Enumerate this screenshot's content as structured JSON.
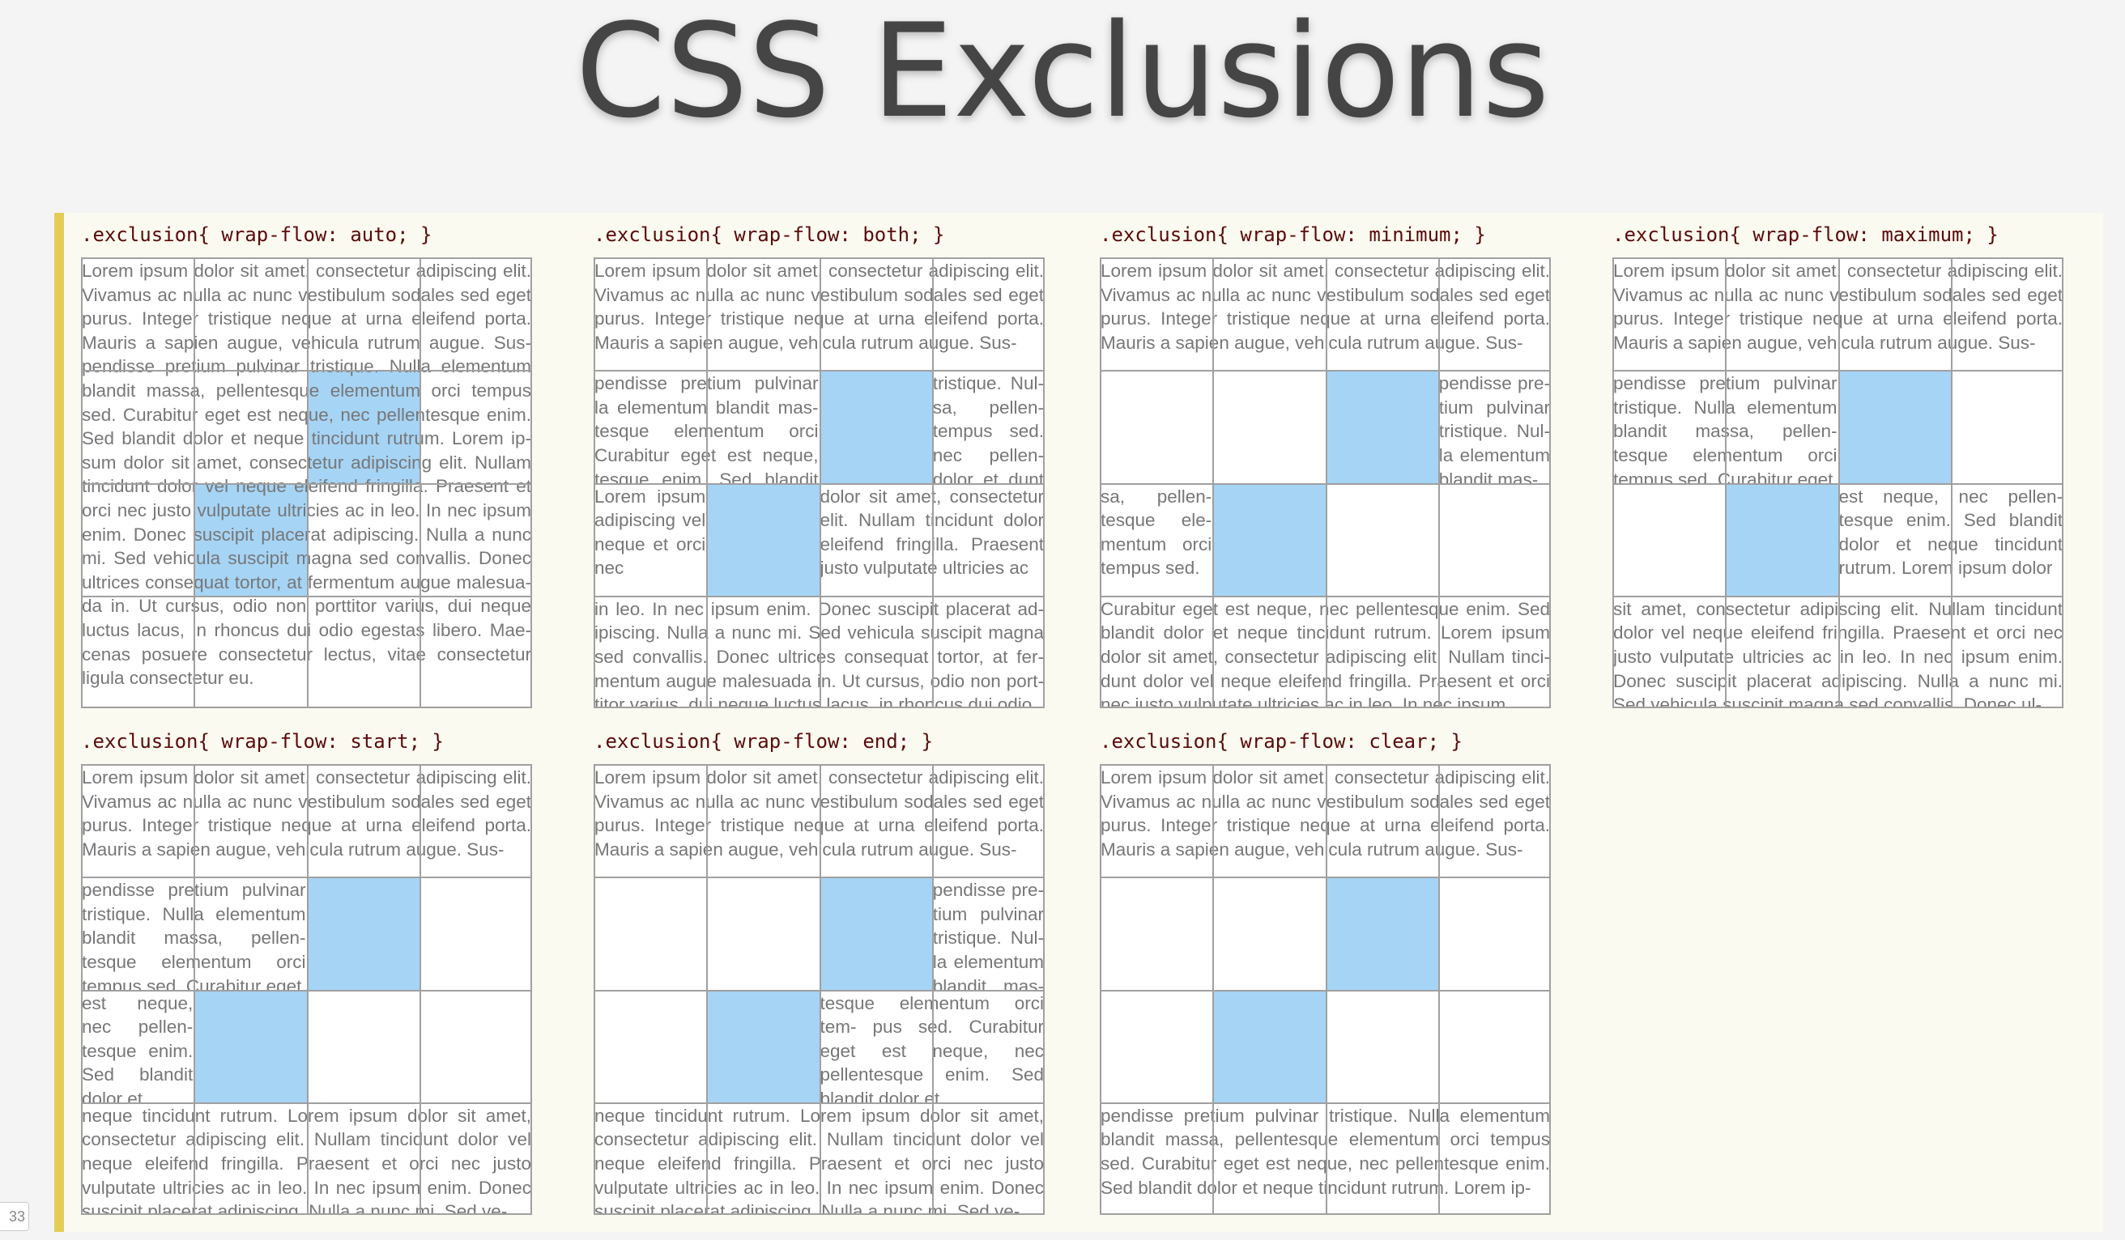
{
  "title": "CSS Exclusions",
  "slide_number": "33",
  "panels": [
    {
      "label": ".exclusion{ wrap-flow: auto; }",
      "blocks": [
        "Lorem ipsum dolor sit amet, consectetur adipiscing elit. Vivamus ac nulla ac nunc vestibulum sodales sed eget purus. Integer tristique neque at urna eleifend porta. Mauris a sapien augue, vehicula rutrum augue. Sus- pendisse pretium pulvinar tristique. Nulla elementum blandit massa, pellentesque elementum orci tempus sed. Curabitur eget est neque, nec pellentesque enim. Sed blandit dolor et neque tincidunt rutrum. Lorem ip- sum dolor sit amet, consectetur adipiscing elit. Nullam tincidunt dolor vel neque eleifend fringilla. Praesent et orci nec justo vulputate ultricies ac in leo. In nec ipsum enim. Donec suscipit placerat adipiscing. Nulla a nunc mi. Sed vehicula suscipit magna sed convallis. Donec ultrices consequat tortor, at fermentum augue malesua- da in. Ut cursus, odio non porttitor varius, dui neque luctus lacus, in rhoncus dui odio egestas libero. Mae- cenas posuere consectetur lectus, vitae consectetur ligula consectetur eu."
      ]
    },
    {
      "label": ".exclusion{ wrap-flow: both; }",
      "blocks": [
        "Lorem ipsum dolor sit amet, consectetur adipiscing elit. Vivamus ac nulla ac nunc vestibulum sodales sed eget purus. Integer tristique neque at urna eleifend porta. Mauris a sapien augue, vehicula rutrum augue. Sus-",
        "pendisse pretium pulvinar la elementum blandit mas- tesque elementum orci Curabitur eget est neque, tesque enim. Sed blandit neque tinci-",
        "tristique. Nul- sa, pellen- tempus sed. nec pellen- dolor et dunt rutrum.",
        "Lorem ipsum adipiscing vel neque et orci nec",
        "dolor sit amet, consectetur elit. Nullam tincidunt dolor eleifend fringilla. Praesent justo vulputate ultricies ac",
        "in leo. In nec ipsum enim. Donec suscipit placerat ad- ipiscing. Nulla a nunc mi. Sed vehicula suscipit magna sed convallis. Donec ultrices consequat tortor, at fer- mentum augue malesuada in. Ut cursus, odio non port- titor varius, dui neque luctus lacus, in rhoncus dui odio"
      ]
    },
    {
      "label": ".exclusion{ wrap-flow: minimum; }",
      "blocks": [
        "Lorem ipsum dolor sit amet, consectetur adipiscing elit. Vivamus ac nulla ac nunc vestibulum sodales sed eget purus. Integer tristique neque at urna eleifend porta. Mauris a sapien augue, vehicula rutrum augue. Sus-",
        "pendisse pre- tium pulvinar tristique. Nul- la elementum blandit mas-",
        "sa, pellen- tesque ele- mentum orci tempus sed.",
        "Curabitur eget est neque, nec pellentesque enim. Sed blandit dolor et neque tincidunt rutrum. Lorem ipsum dolor sit amet, consectetur adipiscing elit. Nullam tinci- dunt dolor vel neque eleifend fringilla. Praesent et orci nec justo vulputate ultricies ac in leo. In nec ipsum"
      ]
    },
    {
      "label": ".exclusion{ wrap-flow: maximum; }",
      "blocks": [
        "Lorem ipsum dolor sit amet, consectetur adipiscing elit. Vivamus ac nulla ac nunc vestibulum sodales sed eget purus. Integer tristique neque at urna eleifend porta. Mauris a sapien augue, vehicula rutrum augue. Sus-",
        "pendisse pretium pulvinar tristique. Nulla elementum blandit massa, pellen- tesque elementum orci tempus sed. Curabitur eget",
        "est neque, nec pellen- tesque enim. Sed blandit dolor et neque tincidunt rutrum. Lorem ipsum dolor",
        "sit amet, consectetur adipiscing elit. Nullam tincidunt dolor vel neque eleifend fringilla. Praesent et orci nec justo vulputate ultricies ac in leo. In nec ipsum enim. Donec suscipit placerat adipiscing. Nulla a nunc mi. Sed vehicula suscipit magna sed convallis. Donec ul-"
      ]
    },
    {
      "label": ".exclusion{ wrap-flow: start; }",
      "blocks": [
        "Lorem ipsum dolor sit amet, consectetur adipiscing elit. Vivamus ac nulla ac nunc vestibulum sodales sed eget purus. Integer tristique neque at urna eleifend porta. Mauris a sapien augue, vehicula rutrum augue. Sus-",
        "pendisse pretium pulvinar tristique. Nulla elementum blandit massa, pellen- tesque elementum orci tempus sed. Curabitur eget",
        "est neque, nec pellen- tesque enim. Sed blandit dolor et",
        "neque tincidunt rutrum. Lorem ipsum dolor sit amet, consectetur adipiscing elit. Nullam tincidunt dolor vel neque eleifend fringilla. Praesent et orci nec justo vulputate ultricies ac in leo. In nec ipsum enim. Donec suscipit placerat adipiscing. Nulla a nunc mi. Sed ve-"
      ]
    },
    {
      "label": ".exclusion{ wrap-flow: end; }",
      "blocks": [
        "Lorem ipsum dolor sit amet, consectetur adipiscing elit. Vivamus ac nulla ac nunc vestibulum sodales sed eget purus. Integer tristique neque at urna eleifend porta. Mauris a sapien augue, vehicula rutrum augue. Sus-",
        "pendisse pre- tium pulvinar tristique. Nul- la elementum blandit mas- sa, pellen-",
        "tesque elementum orci tem- pus sed. Curabitur eget est neque, nec pellentesque enim. Sed blandit dolor et",
        "neque tincidunt rutrum. Lorem ipsum dolor sit amet, consectetur adipiscing elit. Nullam tincidunt dolor vel neque eleifend fringilla. Praesent et orci nec justo vulputate ultricies ac in leo. In nec ipsum enim. Donec suscipit placerat adipiscing. Nulla a nunc mi. Sed ve-"
      ]
    },
    {
      "label": ".exclusion{ wrap-flow: clear; }",
      "blocks": [
        "Lorem ipsum dolor sit amet, consectetur adipiscing elit. Vivamus ac nulla ac nunc vestibulum sodales sed eget purus. Integer tristique neque at urna eleifend porta. Mauris a sapien augue, vehicula rutrum augue. Sus-",
        "pendisse pretium pulvinar tristique. Nulla elementum blandit massa, pellentesque elementum orci tempus sed. Curabitur eget est neque, nec pellentesque enim. Sed blandit dolor et neque tincidunt rutrum. Lorem ip-"
      ]
    }
  ]
}
